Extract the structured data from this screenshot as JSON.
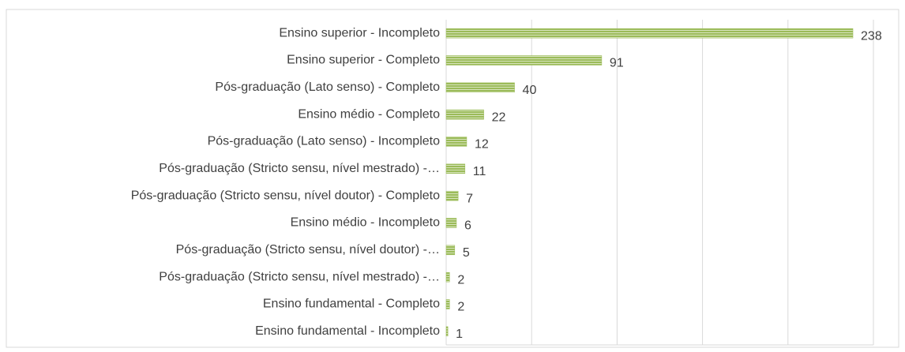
{
  "chart_data": {
    "type": "barh",
    "categories": [
      "Ensino superior - Incompleto",
      "Ensino superior - Completo",
      "Pós-graduação (Lato senso) - Completo",
      "Ensino médio - Completo",
      "Pós-graduação (Lato senso) - Incompleto",
      "Pós-graduação (Stricto sensu, nível mestrado) -…",
      "Pós-graduação (Stricto sensu, nível doutor) - Completo",
      "Ensino médio - Incompleto",
      "Pós-graduação (Stricto sensu, nível doutor) -…",
      "Pós-graduação (Stricto sensu, nível mestrado) -…",
      "Ensino fundamental - Completo",
      "Ensino fundamental - Incompleto"
    ],
    "values": [
      238,
      91,
      40,
      22,
      12,
      11,
      7,
      6,
      5,
      2,
      2,
      1
    ],
    "color": "#9bbb59",
    "xlim": [
      0,
      250
    ],
    "xticks": [
      0,
      50,
      100,
      150,
      200,
      250
    ],
    "grid": true
  }
}
